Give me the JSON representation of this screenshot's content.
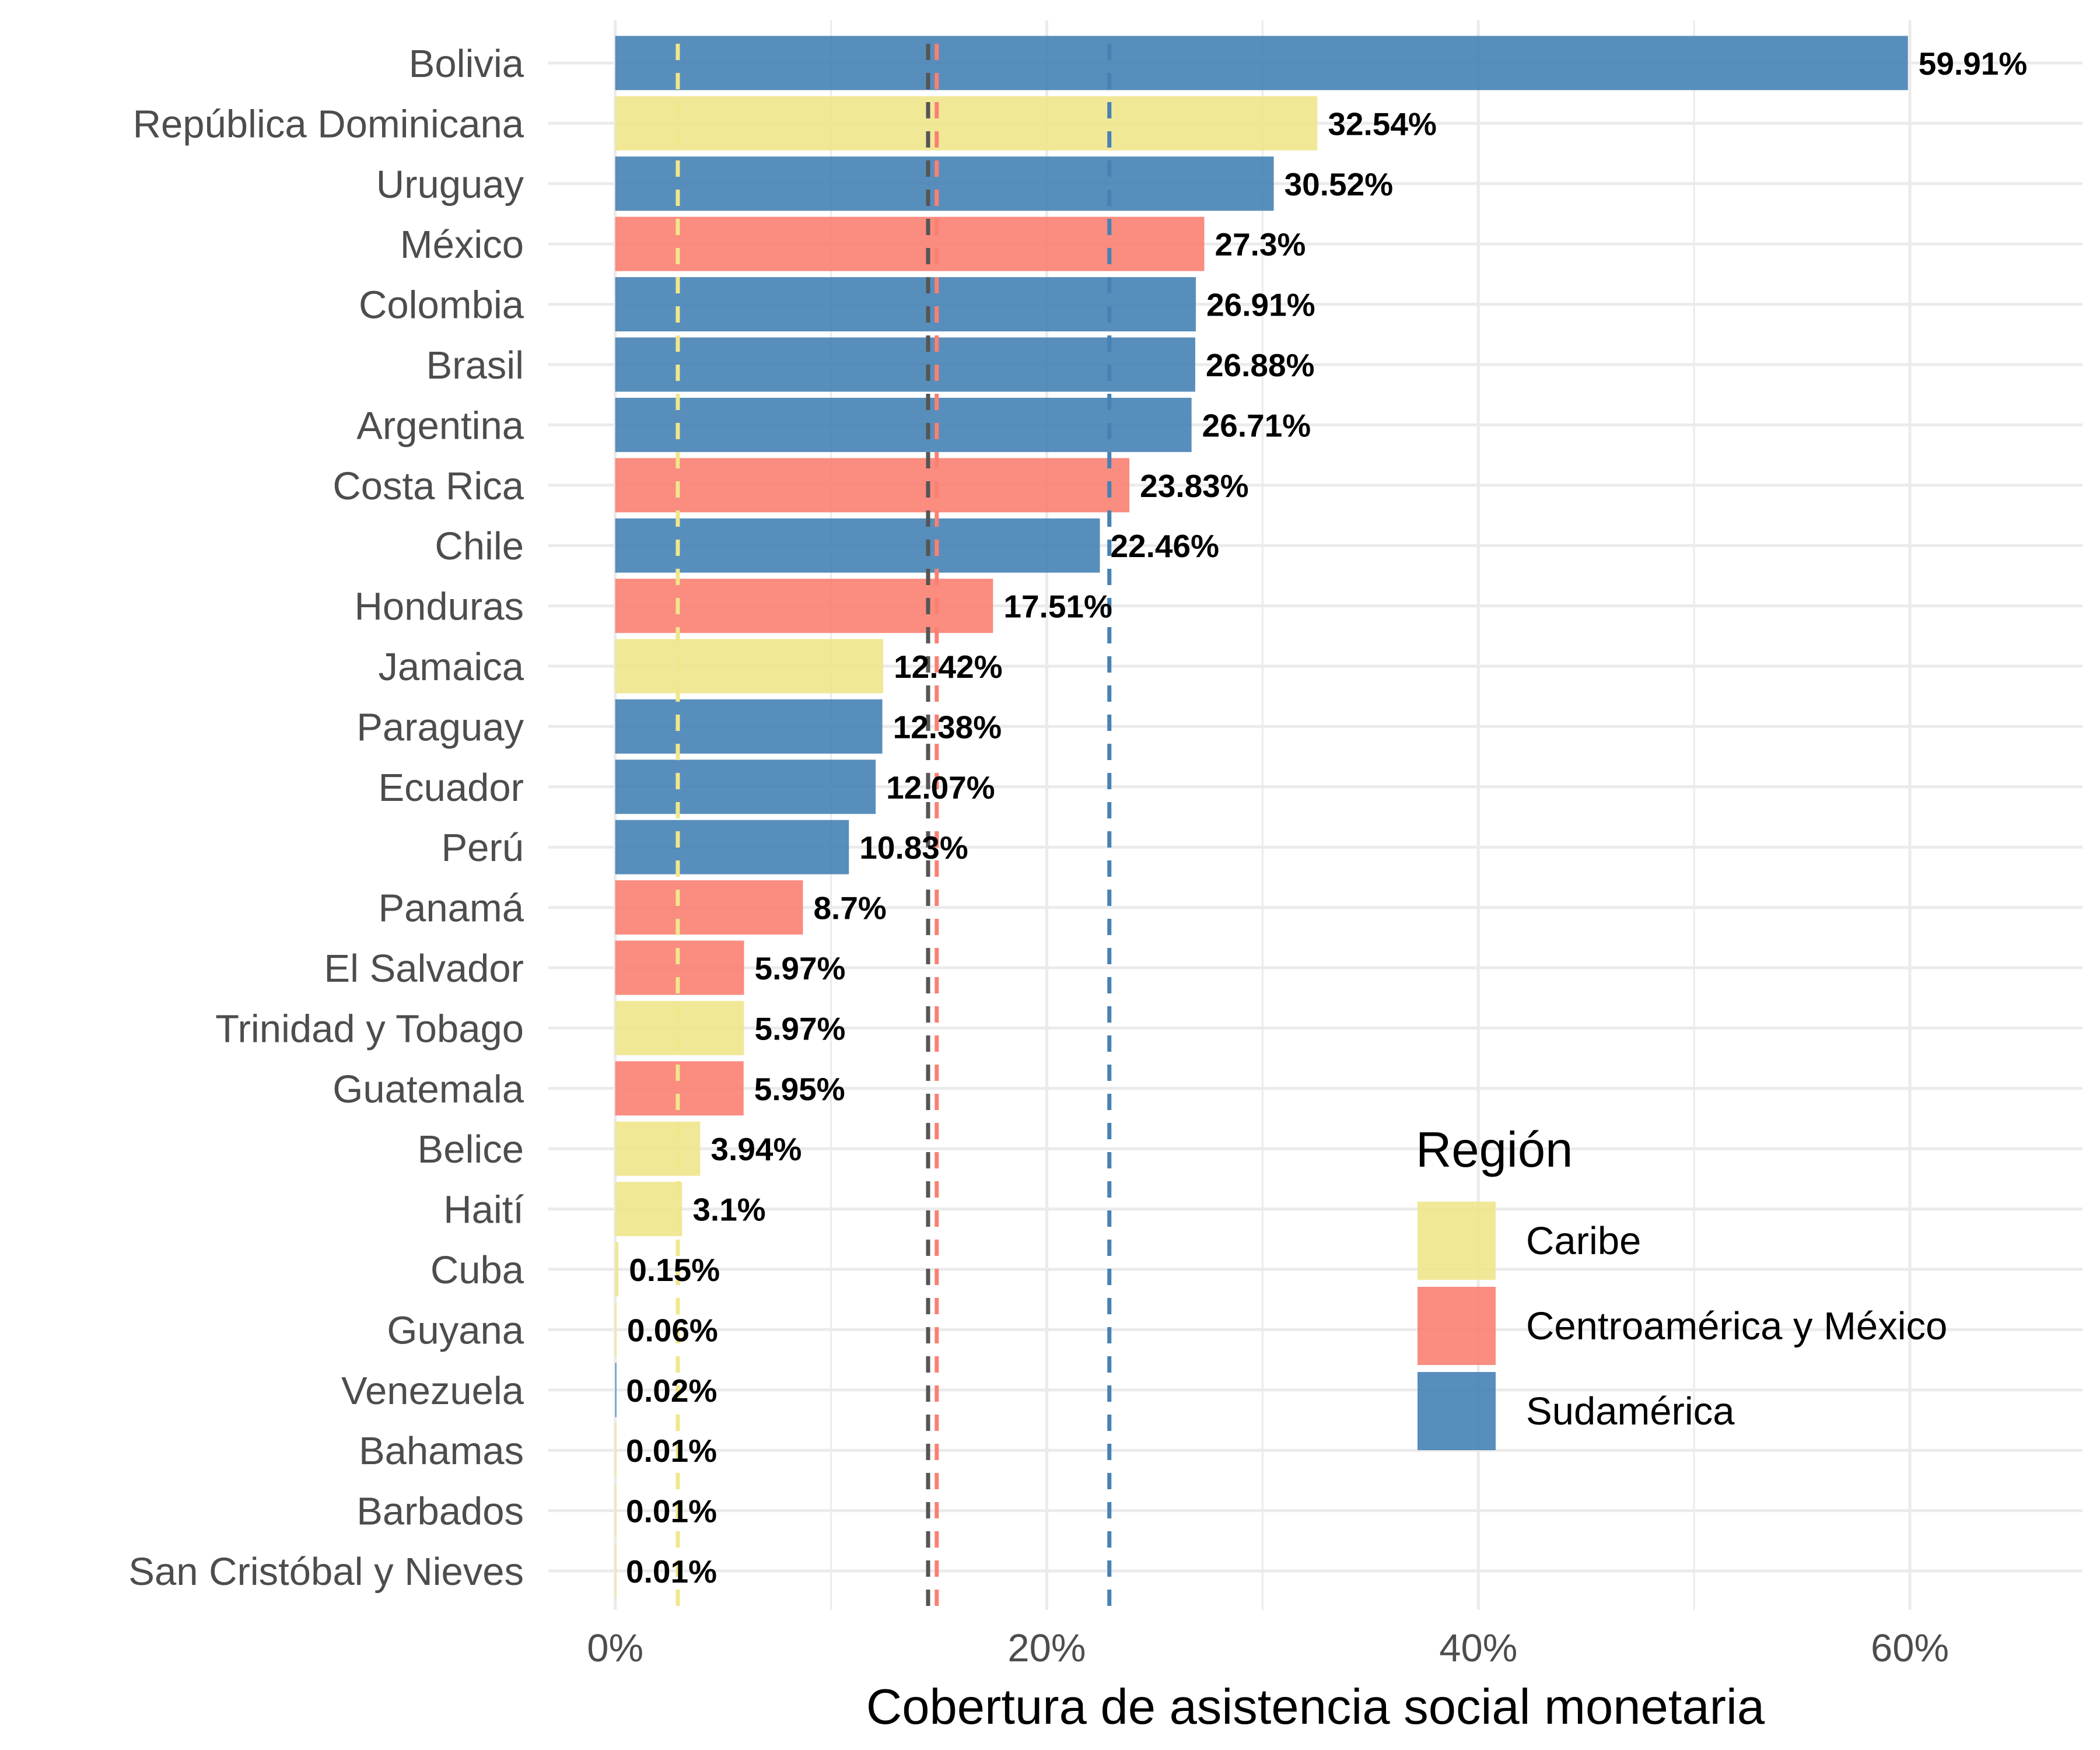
{
  "chart_data": {
    "type": "bar",
    "orientation": "horizontal",
    "title": "",
    "xlabel": "Cobertura de asistencia social monetaria",
    "ylabel": "",
    "xlim": [
      -3.1,
      68
    ],
    "x_ticks": [
      0,
      20,
      40,
      60
    ],
    "x_tick_labels": [
      "0%",
      "20%",
      "40%",
      "60%"
    ],
    "grid": true,
    "legend_position": "bottom-right",
    "legend_title": "Región",
    "regions": [
      {
        "name": "Caribe",
        "color": "#f0e68c"
      },
      {
        "name": "Centroamérica y México",
        "color": "#fa8072"
      },
      {
        "name": "Sudamérica",
        "color": "#4682b4"
      }
    ],
    "bars": [
      {
        "category": "Bolivia",
        "value": 59.91,
        "label": "59.91%",
        "region": "Sudamérica"
      },
      {
        "category": "República Dominicana",
        "value": 32.54,
        "label": "32.54%",
        "region": "Caribe"
      },
      {
        "category": "Uruguay",
        "value": 30.52,
        "label": "30.52%",
        "region": "Sudamérica"
      },
      {
        "category": "México",
        "value": 27.3,
        "label": "27.3%",
        "region": "Centroamérica y México"
      },
      {
        "category": "Colombia",
        "value": 26.91,
        "label": "26.91%",
        "region": "Sudamérica"
      },
      {
        "category": "Brasil",
        "value": 26.88,
        "label": "26.88%",
        "region": "Sudamérica"
      },
      {
        "category": "Argentina",
        "value": 26.71,
        "label": "26.71%",
        "region": "Sudamérica"
      },
      {
        "category": "Costa Rica",
        "value": 23.83,
        "label": "23.83%",
        "region": "Centroamérica y México"
      },
      {
        "category": "Chile",
        "value": 22.46,
        "label": "22.46%",
        "region": "Sudamérica"
      },
      {
        "category": "Honduras",
        "value": 17.51,
        "label": "17.51%",
        "region": "Centroamérica y México"
      },
      {
        "category": "Jamaica",
        "value": 12.42,
        "label": "12.42%",
        "region": "Caribe"
      },
      {
        "category": "Paraguay",
        "value": 12.38,
        "label": "12.38%",
        "region": "Sudamérica"
      },
      {
        "category": "Ecuador",
        "value": 12.07,
        "label": "12.07%",
        "region": "Sudamérica"
      },
      {
        "category": "Perú",
        "value": 10.83,
        "label": "10.83%",
        "region": "Sudamérica"
      },
      {
        "category": "Panamá",
        "value": 8.7,
        "label": "8.7%",
        "region": "Centroamérica y México"
      },
      {
        "category": "El Salvador",
        "value": 5.97,
        "label": "5.97%",
        "region": "Centroamérica y México"
      },
      {
        "category": "Trinidad y Tobago",
        "value": 5.97,
        "label": "5.97%",
        "region": "Caribe"
      },
      {
        "category": "Guatemala",
        "value": 5.95,
        "label": "5.95%",
        "region": "Centroamérica y México"
      },
      {
        "category": "Belice",
        "value": 3.94,
        "label": "3.94%",
        "region": "Caribe"
      },
      {
        "category": "Haití",
        "value": 3.1,
        "label": "3.1%",
        "region": "Caribe"
      },
      {
        "category": "Cuba",
        "value": 0.15,
        "label": "0.15%",
        "region": "Caribe"
      },
      {
        "category": "Guyana",
        "value": 0.06,
        "label": "0.06%",
        "region": "Caribe"
      },
      {
        "category": "Venezuela",
        "value": 0.02,
        "label": "0.02%",
        "region": "Sudamérica"
      },
      {
        "category": "Bahamas",
        "value": 0.01,
        "label": "0.01%",
        "region": "Caribe"
      },
      {
        "category": "Barbados",
        "value": 0.01,
        "label": "0.01%",
        "region": "Caribe"
      },
      {
        "category": "San Cristóbal y Nieves",
        "value": 0.01,
        "label": "0.01%",
        "region": "Caribe"
      }
    ],
    "reference_lines": [
      {
        "value": 2.9,
        "color": "#f0e68c",
        "style": "dashed"
      },
      {
        "value": 14.5,
        "color": "#555555",
        "style": "dashed"
      },
      {
        "value": 14.9,
        "color": "#fa8072",
        "style": "dashed"
      },
      {
        "value": 22.9,
        "color": "#4682b4",
        "style": "dashed"
      }
    ]
  }
}
